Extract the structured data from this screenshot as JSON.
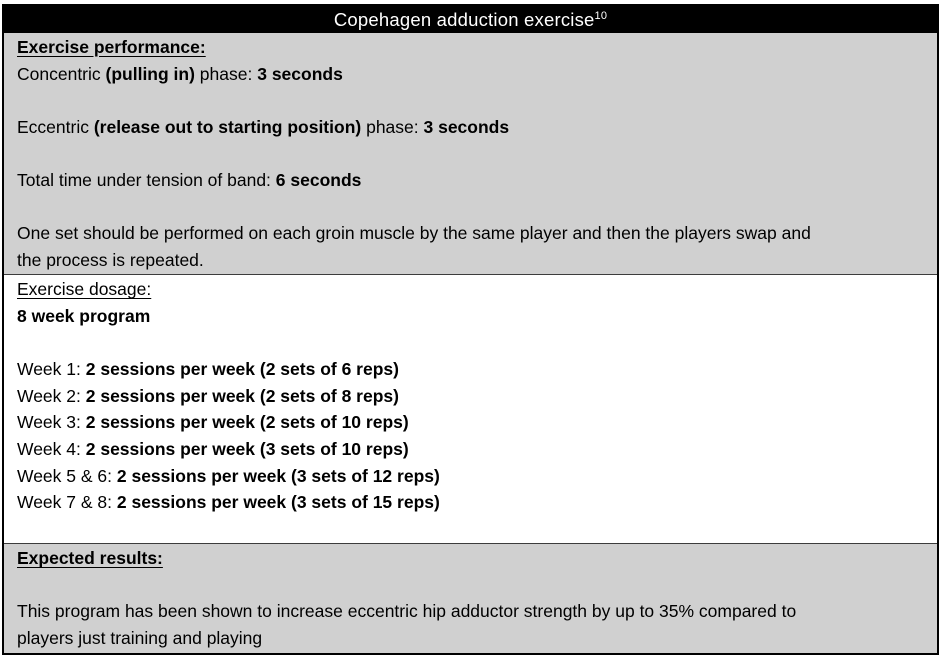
{
  "title": {
    "text": "Copehagen adduction exercise",
    "superscript": "10"
  },
  "colors": {
    "header_bg": "#000000",
    "header_text": "#ffffff",
    "section_gray": "#d0d0d0",
    "section_white": "#ffffff",
    "border": "#000000",
    "body_text": "#000000"
  },
  "sections": [
    {
      "id": "exercise-performance",
      "background": "gray",
      "lines": [
        {
          "segments": [
            {
              "text": "Exercise performance:",
              "bold": true,
              "underline": true
            }
          ]
        },
        {
          "segments": [
            {
              "text": "Concentric ",
              "bold": false
            },
            {
              "text": "(pulling in)",
              "bold": true
            },
            {
              "text": " phase: ",
              "bold": false
            },
            {
              "text": "3 seconds",
              "bold": true
            }
          ]
        },
        {
          "segments": []
        },
        {
          "segments": [
            {
              "text": "Eccentric ",
              "bold": false
            },
            {
              "text": "(release out to starting position)",
              "bold": true
            },
            {
              "text": " phase: ",
              "bold": false
            },
            {
              "text": "3 seconds",
              "bold": true
            }
          ]
        },
        {
          "segments": []
        },
        {
          "segments": [
            {
              "text": "Total time under tension of band: ",
              "bold": false
            },
            {
              "text": "6 seconds",
              "bold": true
            }
          ]
        },
        {
          "segments": []
        },
        {
          "segments": [
            {
              "text": "One set should be performed on each groin muscle by the same player and then the players swap and",
              "bold": false
            }
          ]
        },
        {
          "segments": [
            {
              "text": "the process is repeated.",
              "bold": false
            }
          ]
        }
      ]
    },
    {
      "id": "exercise-dosage",
      "background": "white",
      "lines": [
        {
          "segments": [
            {
              "text": "Exercise dosage:",
              "bold": false,
              "underline": true
            }
          ]
        },
        {
          "segments": [
            {
              "text": "8 week program",
              "bold": true
            }
          ]
        },
        {
          "segments": []
        },
        {
          "segments": [
            {
              "text": "Week 1: ",
              "bold": false
            },
            {
              "text": "2 sessions per week (2 sets of 6 reps)",
              "bold": true
            }
          ]
        },
        {
          "segments": [
            {
              "text": "Week 2: ",
              "bold": false
            },
            {
              "text": "2 sessions per week (2 sets of 8 reps)",
              "bold": true
            }
          ]
        },
        {
          "segments": [
            {
              "text": "Week 3: ",
              "bold": false
            },
            {
              "text": "2 sessions per week (2 sets of 10 reps)",
              "bold": true
            }
          ]
        },
        {
          "segments": [
            {
              "text": "Week 4: ",
              "bold": false
            },
            {
              "text": "2 sessions per week (3 sets of 10 reps)",
              "bold": true
            }
          ]
        },
        {
          "segments": [
            {
              "text": "Week 5 & 6: ",
              "bold": false
            },
            {
              "text": "2 sessions per week (3 sets of 12 reps)",
              "bold": true
            }
          ]
        },
        {
          "segments": [
            {
              "text": "Week 7 & 8: ",
              "bold": false
            },
            {
              "text": "2 sessions per week (3 sets of 15 reps)",
              "bold": true
            }
          ]
        },
        {
          "segments": []
        }
      ]
    },
    {
      "id": "expected-results",
      "background": "gray",
      "lines": [
        {
          "segments": [
            {
              "text": "Expected results:",
              "bold": true,
              "underline": true
            }
          ]
        },
        {
          "segments": []
        },
        {
          "segments": [
            {
              "text": "This program has been shown to increase eccentric hip adductor strength by up to 35% compared to",
              "bold": false
            }
          ]
        },
        {
          "segments": [
            {
              "text": "players just training and playing",
              "bold": false
            }
          ]
        }
      ]
    }
  ]
}
